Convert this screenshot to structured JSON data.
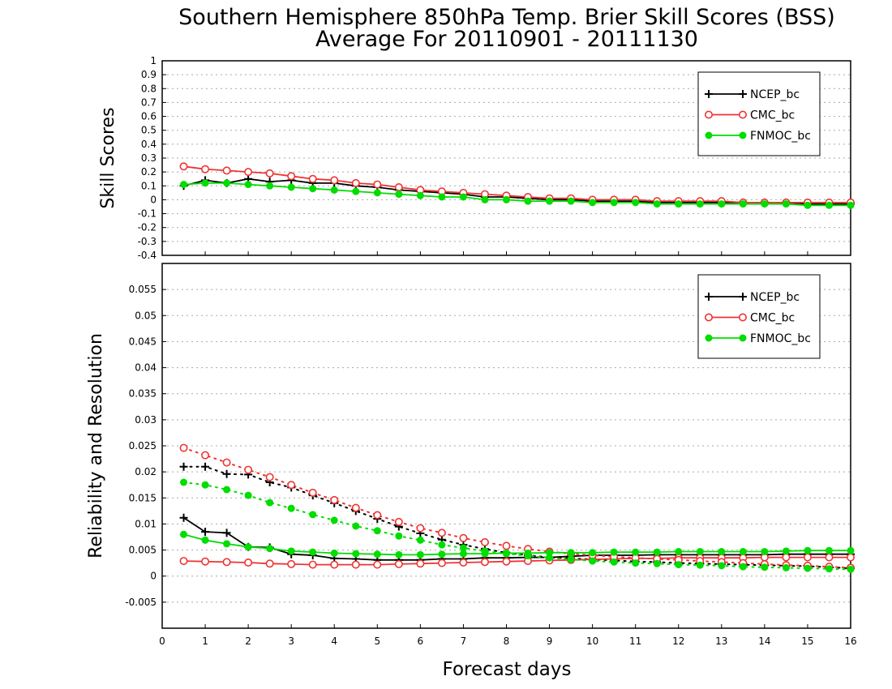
{
  "chart_data": [
    {
      "type": "line",
      "title": "Southern Hemisphere 850hPa Temp. Brier Skill Scores (BSS)",
      "subtitle": "Average For 20110901 - 20111130",
      "ylabel": "Skill Scores",
      "xlim": [
        0,
        16
      ],
      "ylim": [
        -0.4,
        1
      ],
      "yticks": [
        "-0.4",
        "-0.3",
        "-0.2",
        "-0.1",
        "0",
        "0.1",
        "0.2",
        "0.3",
        "0.4",
        "0.5",
        "0.6",
        "0.7",
        "0.8",
        "0.9",
        "1"
      ],
      "grid": true,
      "legend_position": "top-right",
      "x": [
        0.5,
        1,
        1.5,
        2,
        2.5,
        3,
        3.5,
        4,
        4.5,
        5,
        5.5,
        6,
        6.5,
        7,
        7.5,
        8,
        8.5,
        9,
        9.5,
        10,
        10.5,
        11,
        11.5,
        12,
        12.5,
        13,
        13.5,
        14,
        14.5,
        15,
        15.5,
        16
      ],
      "series": [
        {
          "name": "NCEP_bc",
          "color": "#000000",
          "marker": "plus",
          "values": [
            0.1,
            0.14,
            0.12,
            0.15,
            0.13,
            0.14,
            0.12,
            0.12,
            0.1,
            0.09,
            0.07,
            0.06,
            0.05,
            0.04,
            0.02,
            0.02,
            0.01,
            0.0,
            0.0,
            -0.01,
            -0.01,
            -0.01,
            -0.02,
            -0.02,
            -0.02,
            -0.02,
            -0.02,
            -0.02,
            -0.02,
            -0.03,
            -0.03,
            -0.03
          ]
        },
        {
          "name": "CMC_bc",
          "color": "#ee3333",
          "marker": "open-circle",
          "values": [
            0.24,
            0.22,
            0.21,
            0.2,
            0.19,
            0.17,
            0.15,
            0.14,
            0.12,
            0.11,
            0.09,
            0.07,
            0.06,
            0.05,
            0.04,
            0.03,
            0.02,
            0.01,
            0.01,
            0.0,
            0.0,
            0.0,
            -0.01,
            -0.01,
            -0.01,
            -0.01,
            -0.02,
            -0.02,
            -0.02,
            -0.02,
            -0.02,
            -0.02
          ]
        },
        {
          "name": "FNMOC_bc",
          "color": "#00dd00",
          "marker": "filled-circle",
          "values": [
            0.11,
            0.12,
            0.12,
            0.11,
            0.1,
            0.09,
            0.08,
            0.07,
            0.06,
            0.05,
            0.04,
            0.03,
            0.02,
            0.02,
            0.0,
            0.0,
            -0.01,
            -0.01,
            -0.01,
            -0.02,
            -0.02,
            -0.02,
            -0.03,
            -0.03,
            -0.03,
            -0.03,
            -0.03,
            -0.03,
            -0.03,
            -0.04,
            -0.04,
            -0.04
          ]
        }
      ]
    },
    {
      "type": "line",
      "ylabel": "Reliability and Resolution",
      "xlabel": "Forecast days",
      "xlim": [
        0,
        16
      ],
      "xticks": [
        "0",
        "1",
        "2",
        "3",
        "4",
        "5",
        "6",
        "7",
        "8",
        "9",
        "10",
        "11",
        "12",
        "13",
        "14",
        "15",
        "16"
      ],
      "ylim": [
        -0.01,
        0.06
      ],
      "yticks": [
        "-0.005",
        "0",
        "0.005",
        "0.01",
        "0.015",
        "0.02",
        "0.025",
        "0.03",
        "0.035",
        "0.04",
        "0.045",
        "0.05",
        "0.055"
      ],
      "grid": true,
      "legend_position": "top-right",
      "x": [
        0.5,
        1,
        1.5,
        2,
        2.5,
        3,
        3.5,
        4,
        4.5,
        5,
        5.5,
        6,
        6.5,
        7,
        7.5,
        8,
        8.5,
        9,
        9.5,
        10,
        10.5,
        11,
        11.5,
        12,
        12.5,
        13,
        13.5,
        14,
        14.5,
        15,
        15.5,
        16
      ],
      "series": [
        {
          "name": "NCEP_bc",
          "color": "#000000",
          "marker": "plus",
          "line": "solid",
          "values": [
            0.0112,
            0.0085,
            0.0083,
            0.0056,
            0.0055,
            0.0042,
            0.004,
            0.0034,
            0.0033,
            0.0031,
            0.0031,
            0.0031,
            0.0033,
            0.0033,
            0.0035,
            0.0035,
            0.0036,
            0.0036,
            0.0038,
            0.004,
            0.004,
            0.004,
            0.0041,
            0.0041,
            0.0041,
            0.0041,
            0.0041,
            0.0041,
            0.0042,
            0.0042,
            0.0042,
            0.0042
          ]
        },
        {
          "name": "NCEP_bc",
          "color": "#000000",
          "marker": "plus",
          "line": "dotted",
          "values": [
            0.021,
            0.021,
            0.0196,
            0.0195,
            0.018,
            0.017,
            0.0155,
            0.014,
            0.0125,
            0.011,
            0.0095,
            0.0082,
            0.007,
            0.006,
            0.0052,
            0.0045,
            0.004,
            0.0036,
            0.0034,
            0.0032,
            0.003,
            0.0028,
            0.0027,
            0.0025,
            0.0024,
            0.0023,
            0.0022,
            0.0021,
            0.002,
            0.0019,
            0.0017,
            0.0015
          ]
        },
        {
          "name": "CMC_bc",
          "color": "#ee3333",
          "marker": "open-circle",
          "line": "solid",
          "values": [
            0.0029,
            0.0028,
            0.0027,
            0.0026,
            0.0024,
            0.0023,
            0.0022,
            0.0022,
            0.0022,
            0.0022,
            0.0023,
            0.0024,
            0.0025,
            0.0026,
            0.0027,
            0.0028,
            0.0029,
            0.003,
            0.0031,
            0.0032,
            0.0033,
            0.0034,
            0.0034,
            0.0035,
            0.0035,
            0.0035,
            0.0035,
            0.0036,
            0.0036,
            0.0036,
            0.0036,
            0.0036
          ]
        },
        {
          "name": "CMC_bc",
          "color": "#ee3333",
          "marker": "open-circle",
          "line": "dotted",
          "values": [
            0.0246,
            0.0232,
            0.0218,
            0.0204,
            0.019,
            0.0175,
            0.016,
            0.0146,
            0.0131,
            0.0117,
            0.0104,
            0.0092,
            0.0083,
            0.0073,
            0.0065,
            0.0058,
            0.0052,
            0.0047,
            0.0043,
            0.004,
            0.0037,
            0.0035,
            0.0033,
            0.0031,
            0.0029,
            0.0027,
            0.0025,
            0.0023,
            0.0021,
            0.002,
            0.0018,
            0.0016
          ]
        },
        {
          "name": "FNMOC_bc",
          "color": "#00dd00",
          "marker": "filled-circle",
          "line": "solid",
          "values": [
            0.008,
            0.0069,
            0.0062,
            0.0056,
            0.0053,
            0.0048,
            0.0046,
            0.0044,
            0.0043,
            0.0042,
            0.0041,
            0.0041,
            0.0042,
            0.0043,
            0.0043,
            0.0044,
            0.0044,
            0.0045,
            0.0045,
            0.0045,
            0.0046,
            0.0046,
            0.0046,
            0.0047,
            0.0047,
            0.0047,
            0.0047,
            0.0047,
            0.0048,
            0.0049,
            0.0049,
            0.0049
          ]
        },
        {
          "name": "FNMOC_bc",
          "color": "#00dd00",
          "marker": "filled-circle",
          "line": "dotted",
          "values": [
            0.018,
            0.0175,
            0.0166,
            0.0155,
            0.0141,
            0.013,
            0.0118,
            0.0107,
            0.0096,
            0.0087,
            0.0077,
            0.0069,
            0.006,
            0.0054,
            0.0048,
            0.0043,
            0.0039,
            0.0035,
            0.0032,
            0.0029,
            0.0027,
            0.0025,
            0.0024,
            0.0022,
            0.0021,
            0.002,
            0.0018,
            0.0017,
            0.0016,
            0.0015,
            0.0014,
            0.0013
          ]
        }
      ]
    }
  ]
}
